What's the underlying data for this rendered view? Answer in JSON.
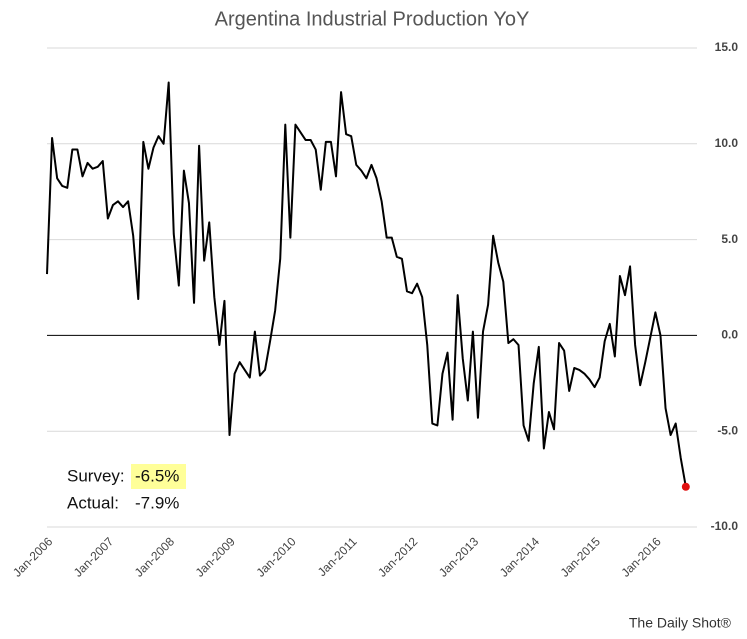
{
  "chart_data": {
    "type": "line",
    "title": "Argentina Industrial Production YoY",
    "categories": [
      "Jan-2006",
      null,
      null,
      null,
      null,
      null,
      null,
      null,
      null,
      null,
      null,
      null,
      "Jan-2007",
      null,
      null,
      null,
      null,
      null,
      null,
      null,
      null,
      null,
      null,
      null,
      "Jan-2008",
      null,
      null,
      null,
      null,
      null,
      null,
      null,
      null,
      null,
      null,
      null,
      "Jan-2009",
      null,
      null,
      null,
      null,
      null,
      null,
      null,
      null,
      null,
      null,
      null,
      "Jan-2010",
      null,
      null,
      null,
      null,
      null,
      null,
      null,
      null,
      null,
      null,
      null,
      "Jan-2011",
      null,
      null,
      null,
      null,
      null,
      null,
      null,
      null,
      null,
      null,
      null,
      "Jan-2012",
      null,
      null,
      null,
      null,
      null,
      null,
      null,
      null,
      null,
      null,
      null,
      "Jan-2013",
      null,
      null,
      null,
      null,
      null,
      null,
      null,
      null,
      null,
      null,
      null,
      "Jan-2014",
      null,
      null,
      null,
      null,
      null,
      null,
      null,
      null,
      null,
      null,
      null,
      "Jan-2015",
      null,
      null,
      null,
      null,
      null,
      null,
      null,
      null,
      null,
      null,
      null,
      "Jan-2016",
      null,
      null,
      null,
      null,
      null,
      null
    ],
    "values": [
      3.2,
      10.3,
      8.2,
      7.8,
      7.7,
      9.7,
      9.7,
      8.3,
      9.0,
      8.7,
      8.8,
      9.1,
      6.1,
      6.8,
      7.0,
      6.7,
      7.0,
      5.2,
      1.9,
      10.1,
      8.7,
      9.8,
      10.4,
      10.0,
      13.2,
      5.3,
      2.6,
      8.6,
      6.9,
      1.7,
      9.9,
      3.9,
      5.9,
      2.0,
      -0.5,
      1.8,
      -5.2,
      -2.0,
      -1.4,
      -1.8,
      -2.2,
      0.2,
      -2.1,
      -1.8,
      -0.3,
      1.3,
      4.0,
      11.0,
      5.1,
      11.0,
      10.6,
      10.2,
      10.2,
      9.7,
      7.6,
      10.1,
      10.1,
      8.3,
      12.7,
      10.5,
      10.4,
      8.9,
      8.6,
      8.2,
      8.9,
      8.2,
      7.0,
      5.1,
      5.1,
      4.1,
      4.0,
      2.3,
      2.2,
      2.7,
      2.0,
      -0.5,
      -4.6,
      -4.7,
      -2.0,
      -0.9,
      -4.4,
      2.1,
      -1.2,
      -3.4,
      0.2,
      -4.3,
      0.2,
      1.6,
      5.2,
      3.8,
      2.8,
      -0.4,
      -0.2,
      -0.5,
      -4.7,
      -5.5,
      -2.5,
      -0.6,
      -5.9,
      -4.0,
      -4.9,
      -0.4,
      -0.8,
      -2.9,
      -1.7,
      -1.8,
      -2.0,
      -2.3,
      -2.7,
      -2.2,
      -0.3,
      0.6,
      -1.1,
      3.1,
      2.1,
      3.6,
      -0.5,
      -2.6,
      -1.4,
      -0.1,
      1.2,
      0.0,
      -3.8,
      -5.2,
      -4.6,
      -6.4,
      -7.9
    ],
    "color": "#000000",
    "last_marker_color": "#e01010",
    "ylim": [
      -10,
      15
    ],
    "yticks": [
      {
        "value": -10,
        "label": "-10.0"
      },
      {
        "value": -5,
        "label": "-5.0"
      },
      {
        "value": 0,
        "label": "0.0"
      },
      {
        "value": 5,
        "label": "5.0"
      },
      {
        "value": 10,
        "label": "10.0"
      },
      {
        "value": 15,
        "label": "15.0"
      }
    ],
    "grid": true,
    "annotations": {
      "survey_label": "Survey:",
      "survey_value": "-6.5%",
      "actual_label": "Actual:",
      "actual_value": "-7.9%"
    },
    "source": "The Daily Shot®"
  }
}
